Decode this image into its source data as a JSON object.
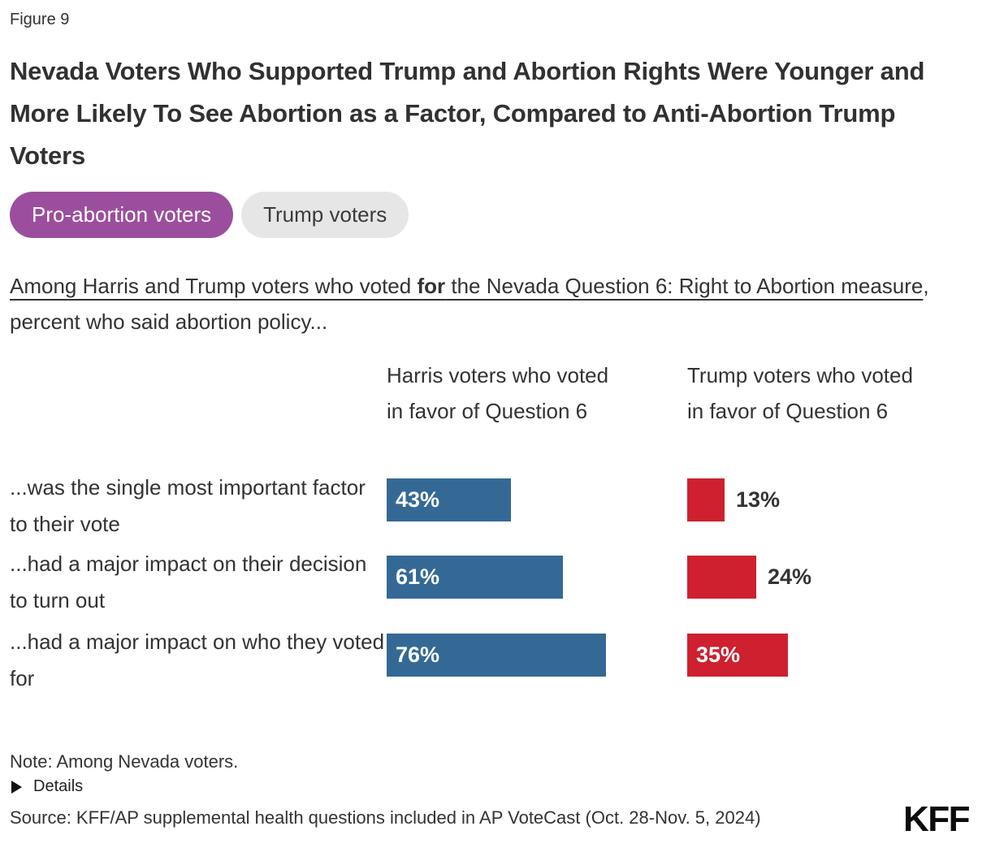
{
  "figure_label": "Figure 9",
  "title": "Nevada Voters Who Supported Trump and Abortion Rights Were Younger and More Likely To See Abortion as a Factor, Compared to Anti-Abortion Trump Voters",
  "tabs": [
    {
      "label": "Pro-abortion voters",
      "selected": true
    },
    {
      "label": "Trump voters",
      "selected": false
    }
  ],
  "subtitle": {
    "underlined_prefix": "Among Harris and Trump voters who voted ",
    "bold_word": "for",
    "underlined_suffix": " the Nevada Question 6: Right to Abortion measure",
    "rest": ", percent who said abortion policy..."
  },
  "chart_data": {
    "type": "bar",
    "orientation": "horizontal",
    "categories": [
      "...was the single most important factor to their vote",
      "...had a major impact on their decision to turn out",
      "...had a major impact on who they voted for"
    ],
    "series": [
      {
        "name": "Harris voters who voted in favor of Question 6",
        "color": "#346996",
        "values": [
          43,
          61,
          76
        ]
      },
      {
        "name": "Trump voters who voted in favor of Question 6",
        "color": "#CE202F",
        "values": [
          13,
          24,
          35
        ]
      }
    ],
    "value_suffix": "%",
    "xlim": [
      0,
      100
    ],
    "grid": false,
    "legend_position": "none"
  },
  "note": "Note: Among Nevada voters.",
  "details_label": "Details",
  "source": "Source: KFF/AP supplemental health questions included in AP VoteCast (Oct. 28-Nov. 5, 2024)",
  "logo_text": "KFF",
  "colors": {
    "accent_purple": "#9B4E9D",
    "tab_inactive_gray": "#E6E6E6",
    "harris_blue": "#346996",
    "trump_red": "#CE202F",
    "text_dark": "#333333"
  }
}
